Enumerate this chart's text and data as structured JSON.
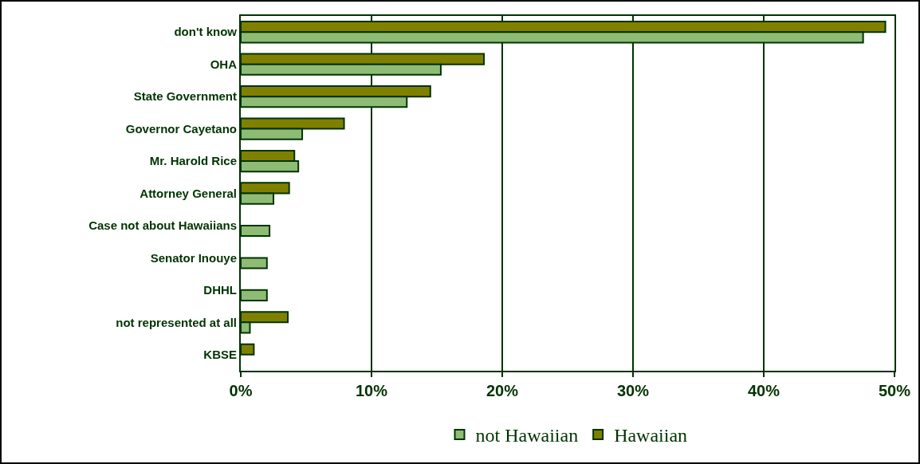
{
  "chart_data": {
    "type": "bar",
    "orientation": "horizontal",
    "categories": [
      "don't know",
      "OHA",
      "State Government",
      "Governor Cayetano",
      "Mr. Harold Rice",
      "Attorney General",
      "Case not about Hawaiians",
      "Senator Inouye",
      "DHHL",
      "not represented at all",
      "KBSE"
    ],
    "series": [
      {
        "name": "not Hawaiian",
        "color": "#8fbc74",
        "values": [
          47.6,
          15.3,
          12.7,
          4.7,
          4.4,
          2.5,
          2.2,
          2.0,
          2.0,
          0.7,
          null
        ]
      },
      {
        "name": "Hawaiian",
        "color": "#808000",
        "values": [
          49.3,
          18.6,
          14.5,
          7.9,
          4.1,
          3.7,
          null,
          null,
          null,
          3.6,
          1.0
        ]
      }
    ],
    "xlim": [
      0,
      50
    ],
    "xticks": [
      {
        "value": 0,
        "label": "0%"
      },
      {
        "value": 10,
        "label": "10%"
      },
      {
        "value": 20,
        "label": "20%"
      },
      {
        "value": 30,
        "label": "30%"
      },
      {
        "value": 40,
        "label": "40%"
      },
      {
        "value": 50,
        "label": "50%"
      }
    ],
    "grid": "x",
    "legend": "bottom"
  }
}
